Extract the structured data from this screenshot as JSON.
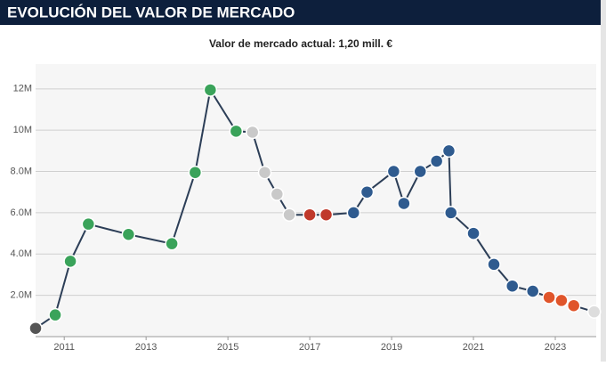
{
  "chart_data": {
    "type": "line",
    "title": "EVOLUCIÓN DEL VALOR DE MERCADO",
    "subtitle": "Valor de mercado actual: 1,20 mill. €",
    "x": [
      2010.3,
      2010.78,
      2011.15,
      2011.59,
      2012.57,
      2013.63,
      2014.2,
      2014.57,
      2015.2,
      2015.6,
      2015.9,
      2016.2,
      2016.5,
      2017.0,
      2017.4,
      2018.07,
      2018.4,
      2019.05,
      2019.3,
      2019.7,
      2020.1,
      2020.4,
      2020.45,
      2021.0,
      2021.5,
      2021.95,
      2022.45,
      2022.85,
      2023.15,
      2023.45,
      2023.95
    ],
    "values": [
      0.4,
      1.05,
      3.65,
      5.45,
      4.95,
      4.5,
      7.95,
      11.95,
      9.95,
      9.9,
      7.95,
      6.9,
      5.9,
      5.9,
      5.9,
      6.0,
      7.0,
      8.0,
      6.45,
      8.0,
      8.5,
      9.0,
      6.0,
      5.0,
      3.5,
      2.45,
      2.2,
      1.9,
      1.75,
      1.5,
      1.2
    ],
    "color": "#2c3e57",
    "point_colors": [
      "#555555",
      "#3aa35a",
      "#3aa35a",
      "#3aa35a",
      "#3aa35a",
      "#3aa35a",
      "#3aa35a",
      "#3aa35a",
      "#3aa35a",
      "#c9c9c9",
      "#c9c9c9",
      "#c9c9c9",
      "#c9c9c9",
      "#c0392b",
      "#c0392b",
      "#2f5b8f",
      "#2f5b8f",
      "#2f5b8f",
      "#2f5b8f",
      "#2f5b8f",
      "#2f5b8f",
      "#2f5b8f",
      "#2f5b8f",
      "#2f5b8f",
      "#2f5b8f",
      "#2f5b8f",
      "#2f5b8f",
      "#e0552b",
      "#e0552b",
      "#e0552b",
      "#dddddd"
    ],
    "xlim": [
      2010.3,
      2024.0
    ],
    "ylim": [
      0,
      13.2
    ],
    "xticks": [
      2011,
      2013,
      2015,
      2017,
      2019,
      2021,
      2023
    ],
    "yticks": [
      {
        "value": 2,
        "label": "2.0M"
      },
      {
        "value": 4,
        "label": "4.0M"
      },
      {
        "value": 6,
        "label": "6.0M"
      },
      {
        "value": 8,
        "label": "8.0M"
      },
      {
        "value": 10,
        "label": "10M"
      },
      {
        "value": 12,
        "label": "12M"
      }
    ],
    "grid": true
  }
}
